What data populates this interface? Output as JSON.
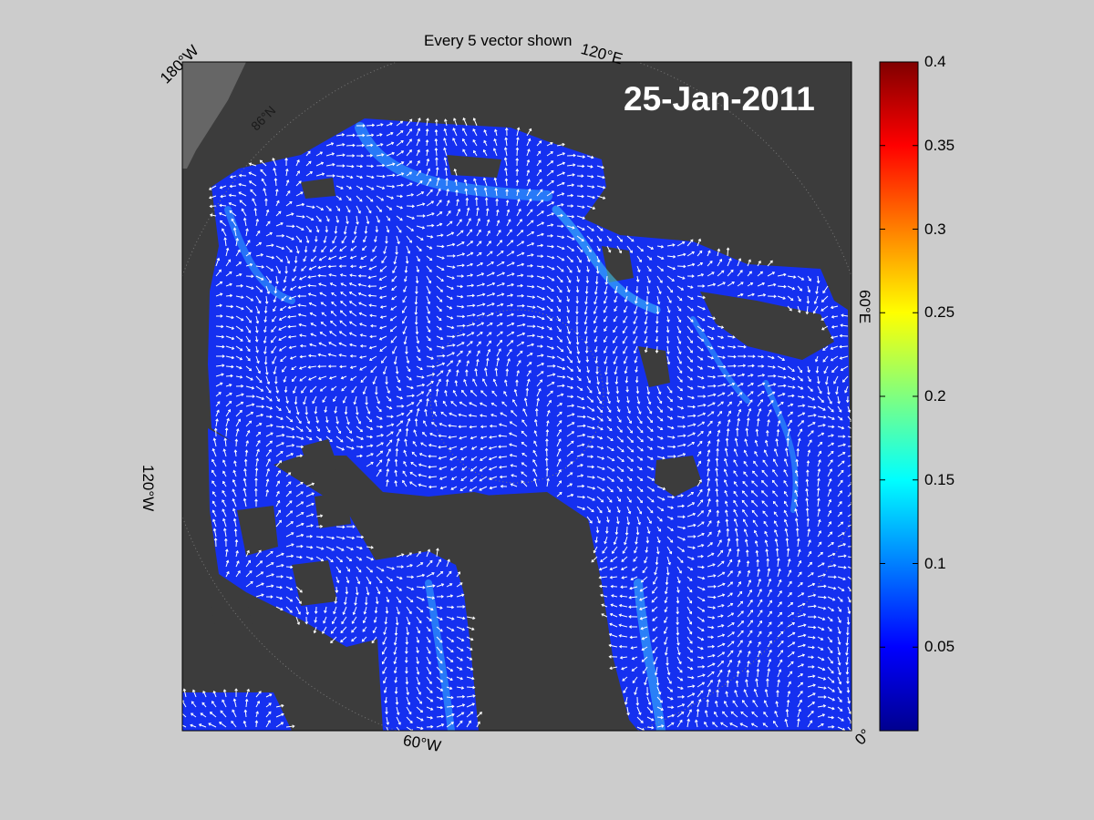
{
  "title": "Every 5 vector shown",
  "date": "25-Jan-2011",
  "longitude_labels": {
    "w180": "180°W",
    "e120": "120°E",
    "e60": "60°E",
    "w120": "120°W",
    "w60": "60°W",
    "zero": "0°"
  },
  "latitude_label": "86°N",
  "colorbar": {
    "min": 0,
    "max": 0.4,
    "colormap": "jet",
    "ticks": [
      "0.4",
      "0.35",
      "0.3",
      "0.25",
      "0.2",
      "0.15",
      "0.1",
      "0.05"
    ],
    "tick_values": [
      0.4,
      0.35,
      0.3,
      0.25,
      0.2,
      0.15,
      0.1,
      0.05
    ]
  },
  "colors": {
    "background": "#cccccc",
    "land": "#3c3c3c",
    "ocean": "#1530f0",
    "vector": "#ffffff"
  }
}
